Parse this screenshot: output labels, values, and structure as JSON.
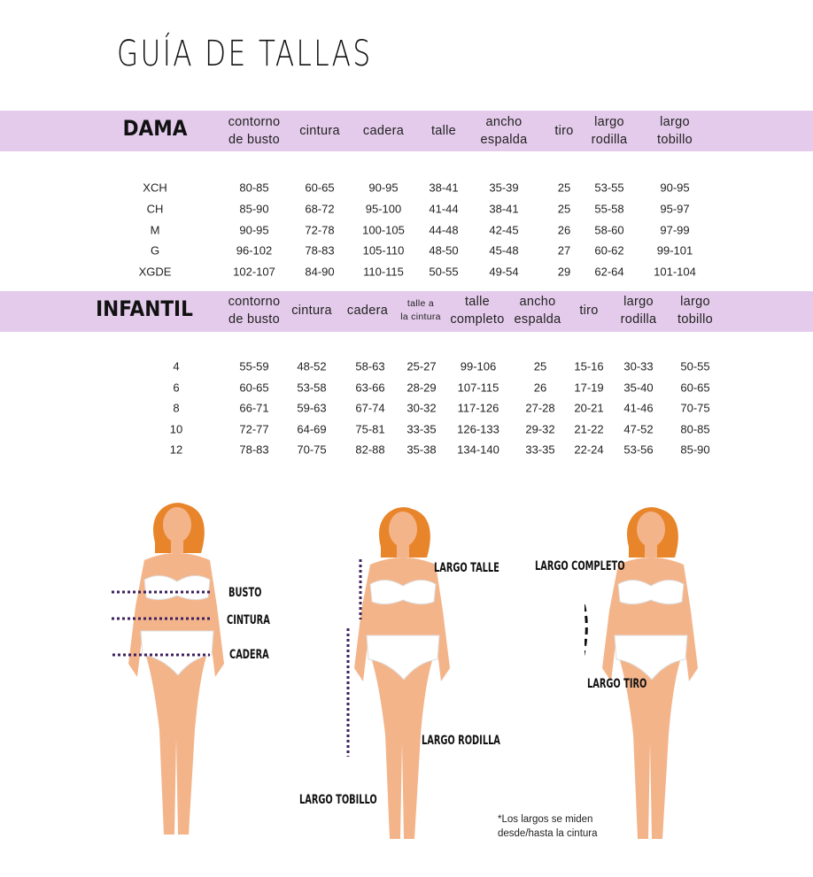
{
  "title": "GUÍA DE TALLAS",
  "dama": {
    "label": "DAMA",
    "headers": [
      [
        "contorno",
        "de busto"
      ],
      [
        "cintura"
      ],
      [
        "cadera"
      ],
      [
        "talle"
      ],
      [
        "ancho",
        "espalda"
      ],
      [
        "tiro"
      ],
      [
        "largo",
        "rodilla"
      ],
      [
        "largo",
        "tobillo"
      ]
    ],
    "rows": [
      [
        "XCH",
        "80-85",
        "60-65",
        "90-95",
        "38-41",
        "35-39",
        "25",
        "53-55",
        "90-95"
      ],
      [
        "CH",
        "85-90",
        "68-72",
        "95-100",
        "41-44",
        "38-41",
        "25",
        "55-58",
        "95-97"
      ],
      [
        "M",
        "90-95",
        "72-78",
        "100-105",
        "44-48",
        "42-45",
        "26",
        "58-60",
        "97-99"
      ],
      [
        "G",
        "96-102",
        "78-83",
        "105-110",
        "48-50",
        "45-48",
        "27",
        "60-62",
        "99-101"
      ],
      [
        "XGDE",
        "102-107",
        "84-90",
        "110-115",
        "50-55",
        "49-54",
        "29",
        "62-64",
        "101-104"
      ]
    ]
  },
  "infantil": {
    "label": "INFANTIL",
    "headers": [
      [
        "contorno",
        "de busto"
      ],
      [
        "cintura"
      ],
      [
        "cadera"
      ],
      [
        "talle a",
        "la cintura"
      ],
      [
        "talle",
        "completo"
      ],
      [
        "ancho",
        "espalda"
      ],
      [
        "tiro"
      ],
      [
        "largo",
        "rodilla"
      ],
      [
        "largo",
        "tobillo"
      ]
    ],
    "rows": [
      [
        "4",
        "55-59",
        "48-52",
        "58-63",
        "25-27",
        "99-106",
        "25",
        "15-16",
        "30-33",
        "50-55"
      ],
      [
        "6",
        "60-65",
        "53-58",
        "63-66",
        "28-29",
        "107-115",
        "26",
        "17-19",
        "35-40",
        "60-65"
      ],
      [
        "8",
        "66-71",
        "59-63",
        "67-74",
        "30-32",
        "117-126",
        "27-28",
        "20-21",
        "41-46",
        "70-75"
      ],
      [
        "10",
        "72-77",
        "64-69",
        "75-81",
        "33-35",
        "126-133",
        "29-32",
        "21-22",
        "47-52",
        "80-85"
      ],
      [
        "12",
        "78-83",
        "70-75",
        "82-88",
        "35-38",
        "134-140",
        "33-35",
        "22-24",
        "53-56",
        "85-90"
      ]
    ]
  },
  "figures": {
    "busto": "BUSTO",
    "cintura": "CINTURA",
    "cadera": "CADERA",
    "largo_talle": "LARGO TALLE",
    "largo_rodilla": "LARGO RODILLA",
    "largo_tobillo": "LARGO TOBILLO",
    "largo_completo": "LARGO COMPLETO",
    "largo_tiro": "LARGO TIRO"
  },
  "note": [
    "*Los largos se miden",
    "desde/hasta la cintura"
  ],
  "colors": {
    "band": "#e4cbeb",
    "skin": "#f4b48a",
    "hair": "#e8852a",
    "measure": "#3d2060"
  }
}
